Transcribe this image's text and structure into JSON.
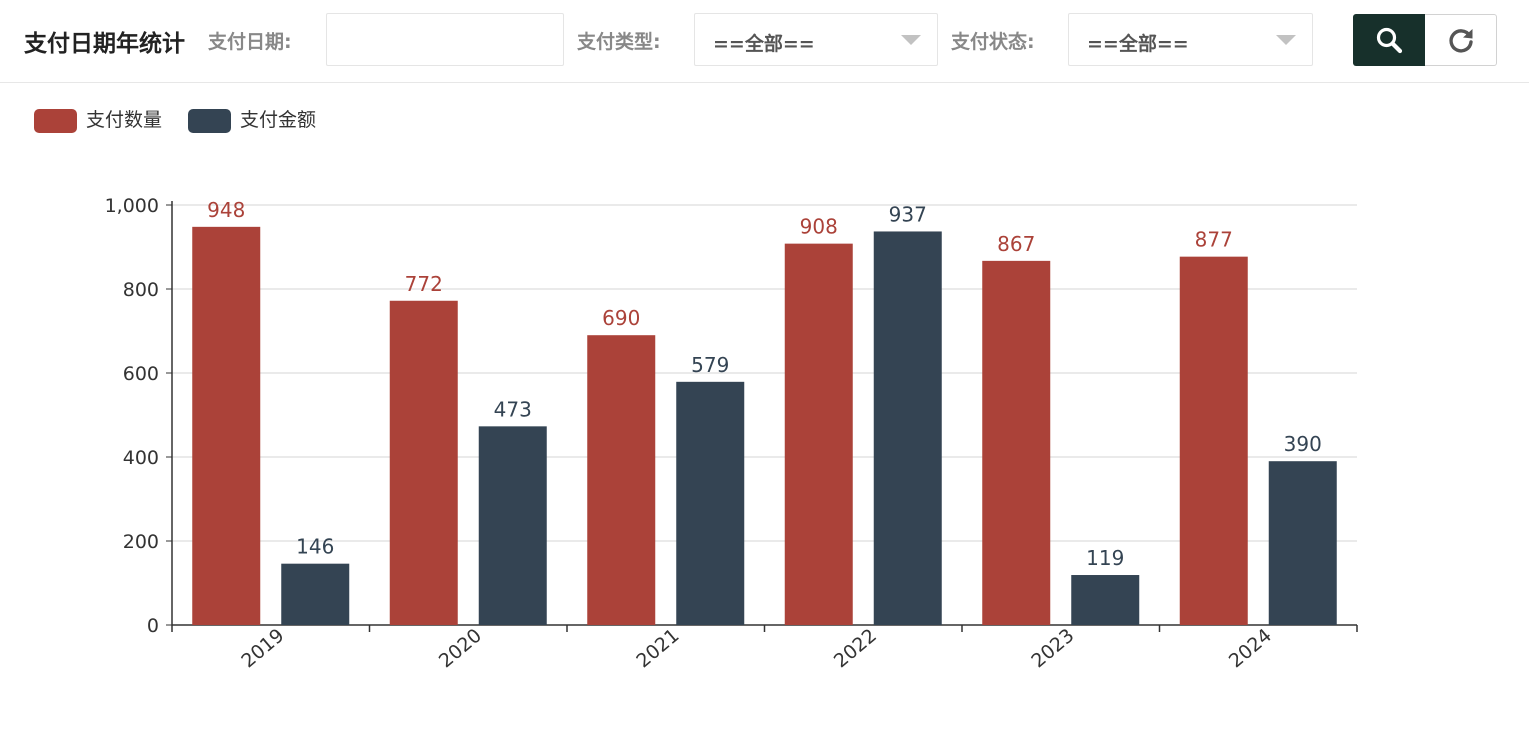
{
  "toolbar": {
    "title": "支付日期年统计",
    "date_label": "支付日期:",
    "date_value": "",
    "type_label": "支付类型:",
    "type_value": "==全部==",
    "status_label": "支付状态:",
    "status_value": "==全部=="
  },
  "icons": {
    "search": "search-icon",
    "refresh": "refresh-icon",
    "dropdown": "chevron-down-icon"
  },
  "colors": {
    "series_count": "#ab4239",
    "series_amount": "#344453",
    "search_button": "#17302b"
  },
  "chart_data": {
    "type": "bar",
    "categories": [
      "2019",
      "2020",
      "2021",
      "2022",
      "2023",
      "2024"
    ],
    "series": [
      {
        "name": "支付数量",
        "values": [
          948,
          772,
          690,
          908,
          867,
          877
        ]
      },
      {
        "name": "支付金额",
        "values": [
          146,
          473,
          579,
          937,
          119,
          390
        ]
      }
    ],
    "ylim": [
      0,
      1000
    ],
    "yticks": [
      "0",
      "200",
      "400",
      "600",
      "800",
      "1,000"
    ],
    "grid": true,
    "legend_position": "top-left",
    "data_labels": true
  }
}
